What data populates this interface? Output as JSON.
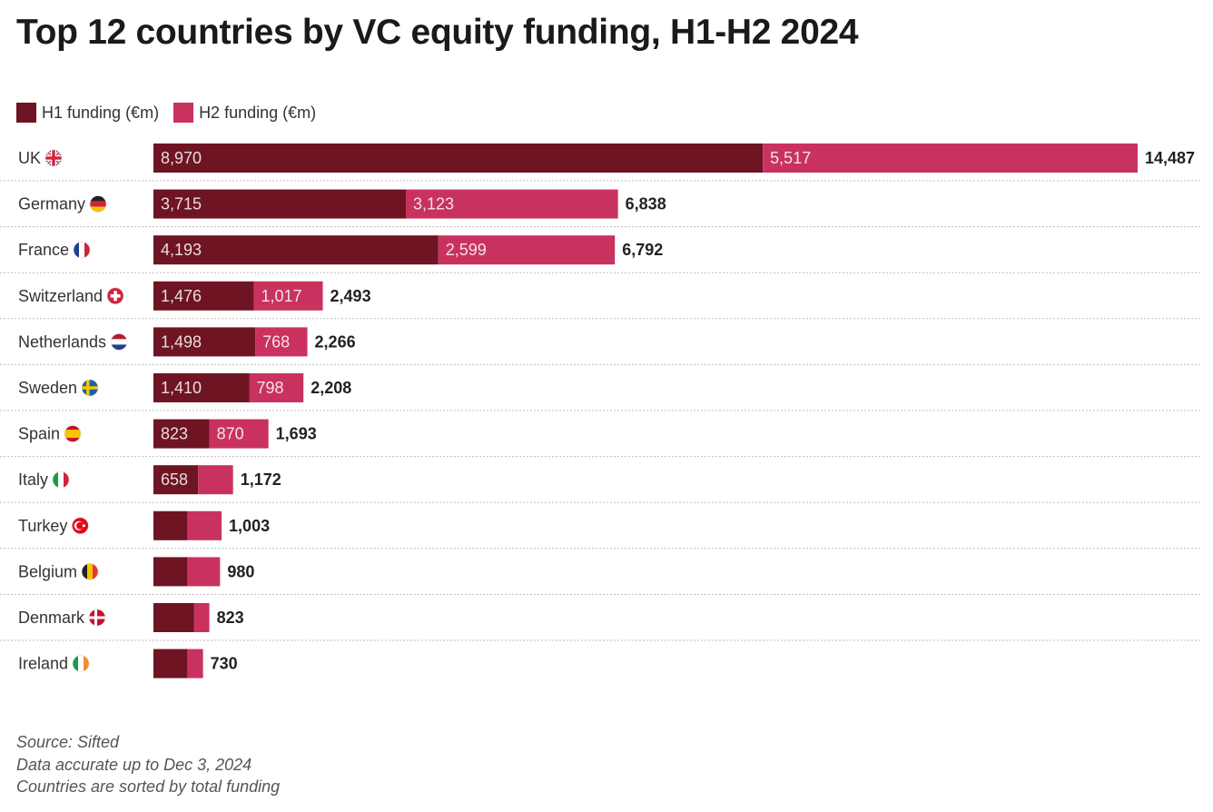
{
  "title": "Top 12 countries by VC equity funding, H1-H2 2024",
  "legend": [
    {
      "label": "H1 funding (€m)",
      "color": "#6e1423"
    },
    {
      "label": "H2 funding (€m)",
      "color": "#c9325f"
    }
  ],
  "chart_data": {
    "type": "bar",
    "orientation": "horizontal",
    "stacked": true,
    "title": "Top 12 countries by VC equity funding, H1-H2 2024",
    "categories": [
      "UK",
      "Germany",
      "France",
      "Switzerland",
      "Netherlands",
      "Sweden",
      "Spain",
      "Italy",
      "Turkey",
      "Belgium",
      "Denmark",
      "Ireland"
    ],
    "flags": [
      "uk-flag-icon",
      "germany-flag-icon",
      "france-flag-icon",
      "switzerland-flag-icon",
      "netherlands-flag-icon",
      "sweden-flag-icon",
      "spain-flag-icon",
      "italy-flag-icon",
      "turkey-flag-icon",
      "belgium-flag-icon",
      "denmark-flag-icon",
      "ireland-flag-icon"
    ],
    "series": [
      {
        "name": "H1 funding (€m)",
        "values": [
          8970,
          3715,
          4193,
          1476,
          1498,
          1410,
          823,
          658,
          500,
          500,
          600,
          500
        ],
        "labels": [
          "8,970",
          "3,715",
          "4,193",
          "1,476",
          "1,498",
          "1,410",
          "823",
          "658",
          null,
          null,
          null,
          null
        ]
      },
      {
        "name": "H2 funding (€m)",
        "values": [
          5517,
          3123,
          2599,
          1017,
          768,
          798,
          870,
          514,
          503,
          480,
          223,
          230
        ],
        "labels": [
          "5,517",
          "3,123",
          "2,599",
          "1,017",
          "768",
          "798",
          "870",
          null,
          null,
          null,
          null,
          null
        ]
      }
    ],
    "totals": [
      "14,487",
      "6,838",
      "6,792",
      "2,493",
      "2,266",
      "2,208",
      "1,693",
      "1,172",
      "1,003",
      "980",
      "823",
      "730"
    ],
    "total_values": [
      14487,
      6838,
      6792,
      2493,
      2266,
      2208,
      1693,
      1172,
      1003,
      980,
      823,
      730
    ],
    "xlim": [
      0,
      14487
    ],
    "legend_position": "top-left",
    "grid": false
  },
  "footer": {
    "source": "Source: Sifted",
    "note1": "Data accurate up to Dec 3, 2024",
    "note2": "Countries are sorted by total funding"
  }
}
